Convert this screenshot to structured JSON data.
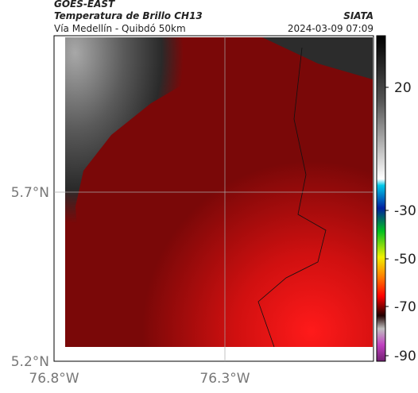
{
  "header": {
    "source": "GOES-EAST",
    "title": "Temperatura de Brillo CH13",
    "subtitle": "Vía Medellín - Quibdó 50km",
    "brand": "SIATA",
    "datetime": "2024-03-09 07:09"
  },
  "axes": {
    "lat_labels": [
      "5.7°N",
      "5.2°N"
    ],
    "lon_labels": [
      "76.8°W",
      "76.3°W"
    ]
  },
  "colorbar": {
    "tick_labels": [
      "20",
      "-30",
      "-50",
      "-70",
      "-90"
    ]
  }
}
